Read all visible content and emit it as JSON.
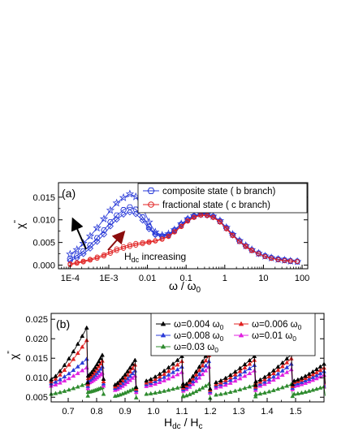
{
  "chart_data": [
    {
      "type": "scatter",
      "panel_label": "(a)",
      "x_scale": "log",
      "xlim": [
        5e-05,
        140
      ],
      "ylim": [
        -0.0008,
        0.0182
      ],
      "xticks": [
        0.0001,
        0.001,
        0.01,
        0.1,
        1,
        10,
        100
      ],
      "xtick_labels": [
        "1E-4",
        "1E-3",
        "0.01",
        "0.1",
        "1",
        "10",
        "100"
      ],
      "yticks": [
        0,
        0.005,
        0.01,
        0.015
      ],
      "ytick_labels": [
        "0.000",
        "0.005",
        "0.010",
        "0.015"
      ],
      "xlabel": "ω / ω",
      "xlabel_sub": "0",
      "ylabel": "χ",
      "ylabel_sup": "\"",
      "legend": [
        {
          "label": "composite state ( b branch)",
          "color": "#2a3bd8",
          "marker": "hex"
        },
        {
          "label": "fractional state ( c branch)",
          "color": "#e02020",
          "marker": "circle"
        }
      ],
      "annotation": {
        "prefix": "H",
        "sub": "dc",
        "suffix": " increasing"
      },
      "series": [
        {
          "name": "composite state ( b branch)",
          "marker": "star",
          "color": "#2a3bd8",
          "x": [
            0.0001,
            0.00015,
            0.00022,
            0.00033,
            0.0005,
            0.00075,
            0.0011,
            0.0016,
            0.0024,
            0.0035,
            0.005,
            0.0075,
            0.011,
            0.016,
            0.024,
            0.035,
            0.05,
            0.075,
            0.11,
            0.16,
            0.24,
            0.35,
            0.5,
            0.75,
            1.1,
            1.6,
            2.4,
            3.5,
            5,
            7.5,
            11,
            16,
            24,
            35,
            50,
            75
          ],
          "y": [
            0.0024,
            0.0034,
            0.0048,
            0.0064,
            0.0082,
            0.0102,
            0.0121,
            0.0137,
            0.0149,
            0.0157,
            0.0151,
            0.0127,
            0.0095,
            0.0073,
            0.0066,
            0.0069,
            0.0078,
            0.0091,
            0.0102,
            0.0109,
            0.0113,
            0.0112,
            0.0108,
            0.0098,
            0.0083,
            0.0068,
            0.0054,
            0.0043,
            0.0034,
            0.0026,
            0.002,
            0.0016,
            0.0013,
            0.0011,
            0.0009,
            0.0008
          ]
        },
        {
          "name": "composite state ( b branch)",
          "marker": "hex",
          "color": "#2a3bd8",
          "x": [
            0.0001,
            0.00015,
            0.00022,
            0.00033,
            0.0005,
            0.00075,
            0.0011,
            0.0016,
            0.0024,
            0.0035,
            0.005,
            0.0075,
            0.011,
            0.016,
            0.024,
            0.035,
            0.05,
            0.075,
            0.11,
            0.16,
            0.24,
            0.35,
            0.5,
            0.75,
            1.1,
            1.6,
            2.4,
            3.5,
            5,
            7.5,
            11,
            16,
            24,
            35,
            50,
            75
          ],
          "y": [
            0.0014,
            0.0021,
            0.0031,
            0.0044,
            0.006,
            0.0077,
            0.0095,
            0.011,
            0.0122,
            0.0128,
            0.0123,
            0.0106,
            0.0084,
            0.0069,
            0.0064,
            0.0067,
            0.0077,
            0.009,
            0.0101,
            0.0108,
            0.0112,
            0.0111,
            0.0107,
            0.0097,
            0.0082,
            0.0067,
            0.0053,
            0.0042,
            0.0033,
            0.0026,
            0.002,
            0.0016,
            0.0013,
            0.0011,
            0.0009,
            0.0008
          ]
        },
        {
          "name": "composite state ( b branch)",
          "marker": "diamond",
          "color": "#2a3bd8",
          "x": [
            0.0001,
            0.00015,
            0.00022,
            0.00033,
            0.0005,
            0.00075,
            0.0011,
            0.0016,
            0.0024,
            0.0035,
            0.005,
            0.0075,
            0.011,
            0.016,
            0.024,
            0.035,
            0.05,
            0.075,
            0.11,
            0.16,
            0.24,
            0.35,
            0.5,
            0.75,
            1.1,
            1.6,
            2.4,
            3.5,
            5,
            7.5,
            11,
            16,
            24,
            35,
            50,
            75
          ],
          "y": [
            0.001,
            0.0016,
            0.0025,
            0.0037,
            0.0052,
            0.0068,
            0.0086,
            0.0101,
            0.0112,
            0.0117,
            0.0113,
            0.0099,
            0.008,
            0.0067,
            0.0063,
            0.0066,
            0.0076,
            0.0089,
            0.01,
            0.0107,
            0.0111,
            0.011,
            0.0106,
            0.0096,
            0.0081,
            0.0066,
            0.0053,
            0.0042,
            0.0033,
            0.0025,
            0.002,
            0.0016,
            0.0013,
            0.0011,
            0.0009,
            0.0008
          ]
        },
        {
          "name": "fractional state ( c branch)",
          "marker": "circle",
          "color": "#e02020",
          "x": [
            0.0001,
            0.00015,
            0.00022,
            0.00033,
            0.0005,
            0.00075,
            0.0011,
            0.0016,
            0.0024,
            0.0035,
            0.005,
            0.0075,
            0.011,
            0.016,
            0.024,
            0.035,
            0.05,
            0.075,
            0.11,
            0.16,
            0.24,
            0.35,
            0.5,
            0.75,
            1.1,
            1.6,
            2.4,
            3.5,
            5,
            7.5,
            11,
            16,
            24,
            35,
            50,
            75
          ],
          "y": [
            0.0003,
            0.0006,
            0.0009,
            0.0013,
            0.0018,
            0.0023,
            0.003,
            0.0036,
            0.0041,
            0.0045,
            0.0048,
            0.005,
            0.0052,
            0.0054,
            0.0058,
            0.0064,
            0.0074,
            0.0086,
            0.0098,
            0.0106,
            0.0111,
            0.011,
            0.0106,
            0.0096,
            0.0081,
            0.0066,
            0.0052,
            0.0042,
            0.0033,
            0.0025,
            0.0019,
            0.0015,
            0.0012,
            0.001,
            0.0009,
            0.0008
          ]
        },
        {
          "name": "fractional state ( c branch)",
          "marker": "circle",
          "color": "#e02020",
          "x": [
            0.0001,
            0.00015,
            0.00022,
            0.00033,
            0.0005,
            0.00075,
            0.0011,
            0.0016,
            0.0024,
            0.0035,
            0.005,
            0.0075,
            0.011,
            0.016,
            0.024,
            0.035,
            0.05,
            0.075,
            0.11,
            0.16,
            0.24,
            0.35,
            0.5,
            0.75,
            1.1,
            1.6,
            2.4,
            3.5,
            5,
            7.5,
            11,
            16,
            24,
            35,
            50,
            75
          ],
          "y": [
            0.0001,
            0.0004,
            0.0007,
            0.0011,
            0.0015,
            0.002,
            0.0026,
            0.0032,
            0.0037,
            0.0041,
            0.0044,
            0.0047,
            0.005,
            0.0053,
            0.0057,
            0.0063,
            0.0073,
            0.0085,
            0.0097,
            0.0105,
            0.011,
            0.0109,
            0.0105,
            0.0095,
            0.008,
            0.0065,
            0.0052,
            0.0041,
            0.0032,
            0.0025,
            0.0019,
            0.0015,
            0.0012,
            0.001,
            0.0009,
            0.0008
          ]
        }
      ]
    },
    {
      "type": "line",
      "panel_label": "(b)",
      "xlim": [
        0.64,
        1.6
      ],
      "ylim": [
        0.0038,
        0.0265
      ],
      "xticks": [
        0.7,
        0.8,
        0.9,
        1.0,
        1.1,
        1.2,
        1.3,
        1.4,
        1.5
      ],
      "xtick_labels": [
        "0.7",
        "0.8",
        "0.9",
        "1.0",
        "1.1",
        "1.2",
        "1.3",
        "1.4",
        "1.5"
      ],
      "yticks": [
        0.005,
        0.01,
        0.015,
        0.02,
        0.025
      ],
      "ytick_labels": [
        "0.005",
        "0.010",
        "0.015",
        "0.020",
        "0.025"
      ],
      "xlabel": "H",
      "xlabel_sub1": "dc",
      "xlabel_mid": " / H",
      "xlabel_sub2": "c",
      "ylabel": "χ",
      "ylabel_sup": "\"",
      "segments": [
        [
          0.64,
          0.765
        ],
        [
          0.77,
          0.82
        ],
        [
          0.865,
          0.935
        ],
        [
          0.975,
          1.1
        ],
        [
          1.105,
          1.195
        ],
        [
          1.22,
          1.355
        ],
        [
          1.36,
          1.485
        ],
        [
          1.495,
          1.6
        ]
      ],
      "series": [
        {
          "name": "ω=0.004 ω",
          "name_sub": "0",
          "color": "#000000",
          "marker": "triangle",
          "low": [
            0.0095,
            0.0105,
            0.0082,
            0.0092,
            0.0078,
            0.0088,
            0.009,
            0.0092
          ],
          "high": [
            0.0228,
            0.0158,
            0.0145,
            0.0155,
            0.017,
            0.0155,
            0.016,
            0.0135
          ]
        },
        {
          "name": "ω=0.006 ω",
          "name_sub": "0",
          "color": "#e02020",
          "marker": "triangle",
          "low": [
            0.009,
            0.0098,
            0.0077,
            0.0087,
            0.0074,
            0.0083,
            0.0085,
            0.0088
          ],
          "high": [
            0.0196,
            0.0143,
            0.0133,
            0.0142,
            0.0157,
            0.0145,
            0.0149,
            0.0125
          ]
        },
        {
          "name": "ω=0.008 ω",
          "name_sub": "0",
          "color": "#2a3bd8",
          "marker": "triangle",
          "low": [
            0.0085,
            0.0092,
            0.0073,
            0.0083,
            0.007,
            0.0079,
            0.008,
            0.0083
          ],
          "high": [
            0.0148,
            0.0128,
            0.0118,
            0.0128,
            0.0142,
            0.0132,
            0.0135,
            0.0116
          ]
        },
        {
          "name": "ω=0.01 ω",
          "name_sub": "0",
          "color": "#e020e0",
          "marker": "triangle",
          "low": [
            0.0079,
            0.0086,
            0.0068,
            0.0078,
            0.0066,
            0.0074,
            0.0076,
            0.0078
          ],
          "high": [
            0.0126,
            0.0112,
            0.0105,
            0.0114,
            0.0128,
            0.0118,
            0.0121,
            0.0107
          ]
        },
        {
          "name": "ω=0.03 ω",
          "name_sub": "0",
          "color": "#2e8b2e",
          "marker": "triangle",
          "low": [
            0.0058,
            0.0063,
            0.0053,
            0.0058,
            0.0052,
            0.0056,
            0.0057,
            0.0058
          ],
          "high": [
            0.0085,
            0.0075,
            0.0073,
            0.0077,
            0.0084,
            0.0081,
            0.0083,
            0.0077
          ]
        }
      ]
    }
  ]
}
